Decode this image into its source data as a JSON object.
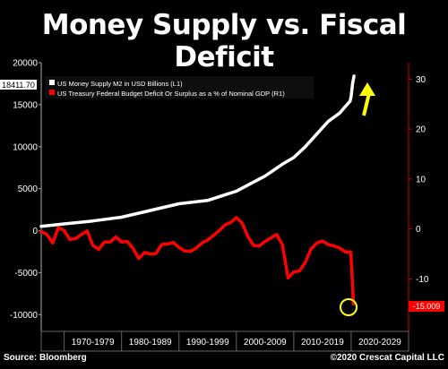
{
  "title": "Money Supply vs. Fiscal Deficit",
  "source": "Source: Bloomberg",
  "copyright": "©2020 Crescat Capital LLC",
  "colors": {
    "m2": "#ffffff",
    "deficit": "#ff0000",
    "arrow": "#ffff00",
    "circle": "#ffff00",
    "right_axis": "#cc0000"
  },
  "chart_data": {
    "type": "line",
    "legend_position": "top-left",
    "x_range": [
      1966,
      2030
    ],
    "x_tick_labels": [
      "1970-1979",
      "1980-1989",
      "1990-1999",
      "2000-2009",
      "2010-2019",
      "2020-2029"
    ],
    "y_left": {
      "ylim": [
        -12000,
        20000
      ],
      "ticks": [
        20000,
        15000,
        10000,
        5000,
        0,
        -5000,
        -10000
      ],
      "tick_labels": [
        "20000",
        "15000",
        "10000",
        "5000",
        "0",
        "-5000",
        "-10000"
      ]
    },
    "y_right": {
      "ylim": [
        -20.5,
        33.3
      ],
      "ticks": [
        30,
        20,
        10,
        0,
        -10
      ],
      "tick_labels": [
        "30",
        "20",
        "10",
        "0",
        "-10"
      ]
    },
    "last_value_left": "18411.70",
    "last_value_right": "-15.009",
    "series": [
      {
        "name": "US Money Supply M2 in USD Billions (L1)",
        "axis": "left",
        "x": [
          1966,
          1970,
          1975,
          1980,
          1985,
          1990,
          1995,
          2000,
          2005,
          2008,
          2010,
          2012,
          2014,
          2016,
          2018,
          2019,
          2019.8,
          2020.0,
          2020.25,
          2020.5
        ],
        "y": [
          500,
          800,
          1150,
          1600,
          2400,
          3200,
          3600,
          4700,
          6500,
          7900,
          8700,
          10000,
          11500,
          13000,
          14000,
          14800,
          15400,
          16000,
          17500,
          18411.7
        ]
      },
      {
        "name": "US Treasury Federal Budget Deficit Or Surplus as a % of Nominal GDP (R1)",
        "axis": "right",
        "x": [
          1966,
          1967,
          1968,
          1969,
          1970,
          1971,
          1972,
          1973,
          1974,
          1975,
          1976,
          1977,
          1978,
          1979,
          1980,
          1981,
          1982,
          1983,
          1984,
          1985,
          1986,
          1987,
          1988,
          1989,
          1990,
          1991,
          1992,
          1993,
          1994,
          1995,
          1996,
          1997,
          1998,
          1999,
          2000,
          2001,
          2002,
          2003,
          2004,
          2005,
          2006,
          2007,
          2008,
          2009,
          2010,
          2011,
          2012,
          2013,
          2014,
          2015,
          2016,
          2017,
          2018,
          2019,
          2019.9,
          2020.1,
          2020.4
        ],
        "y": [
          -0.5,
          -1.1,
          -2.8,
          0.3,
          -0.3,
          -2.1,
          -1.9,
          -1.1,
          -0.4,
          -3.3,
          -4.1,
          -2.6,
          -2.6,
          -1.6,
          -2.6,
          -2.5,
          -3.9,
          -5.9,
          -4.7,
          -5.0,
          -4.9,
          -3.1,
          -3.0,
          -2.7,
          -3.7,
          -4.4,
          -4.5,
          -3.8,
          -2.8,
          -2.2,
          -1.3,
          -0.3,
          0.8,
          1.3,
          2.3,
          1.2,
          -1.5,
          -3.3,
          -3.4,
          -2.5,
          -1.8,
          -1.1,
          -3.1,
          -9.8,
          -8.6,
          -8.4,
          -6.7,
          -4.0,
          -2.8,
          -2.4,
          -3.1,
          -3.4,
          -3.8,
          -4.6,
          -4.6,
          -8.0,
          -15.009
        ]
      }
    ]
  }
}
